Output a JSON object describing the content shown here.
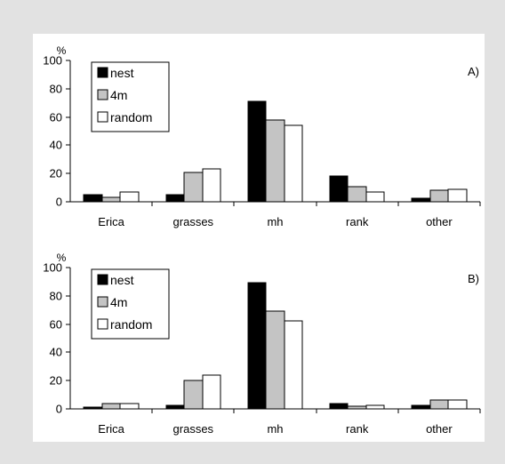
{
  "colors": {
    "page_background": "#e2e2e2",
    "panel_background": "#ffffff",
    "bar_outline": "#000000"
  },
  "chart_data": [
    {
      "type": "bar",
      "panel_label": "A)",
      "ylabel": "%",
      "ylim": [
        0,
        100
      ],
      "yticks": [
        0,
        20,
        40,
        60,
        80,
        100
      ],
      "categories": [
        "Erica",
        "grasses",
        "mh",
        "rank",
        "other"
      ],
      "series": [
        {
          "name": "nest",
          "color": "#000000",
          "values": [
            5,
            5,
            71,
            18,
            2.5
          ]
        },
        {
          "name": "4m",
          "color": "#c4c4c4",
          "values": [
            3,
            21,
            58,
            11,
            8
          ]
        },
        {
          "name": "random",
          "color": "#ffffff",
          "values": [
            7,
            23,
            54,
            7,
            8.5
          ]
        }
      ],
      "legend": "top-left",
      "grid": false
    },
    {
      "type": "bar",
      "panel_label": "B)",
      "ylabel": "%",
      "ylim": [
        0,
        100
      ],
      "yticks": [
        0,
        20,
        40,
        60,
        80,
        100
      ],
      "categories": [
        "Erica",
        "grasses",
        "mh",
        "rank",
        "other"
      ],
      "series": [
        {
          "name": "nest",
          "color": "#000000",
          "values": [
            1.5,
            2.5,
            89,
            4,
            2.5
          ]
        },
        {
          "name": "4m",
          "color": "#c4c4c4",
          "values": [
            3.5,
            20,
            69,
            2,
            6
          ]
        },
        {
          "name": "random",
          "color": "#ffffff",
          "values": [
            4,
            24,
            62,
            2.5,
            6.5
          ]
        }
      ],
      "legend": "top-left",
      "grid": false
    }
  ]
}
